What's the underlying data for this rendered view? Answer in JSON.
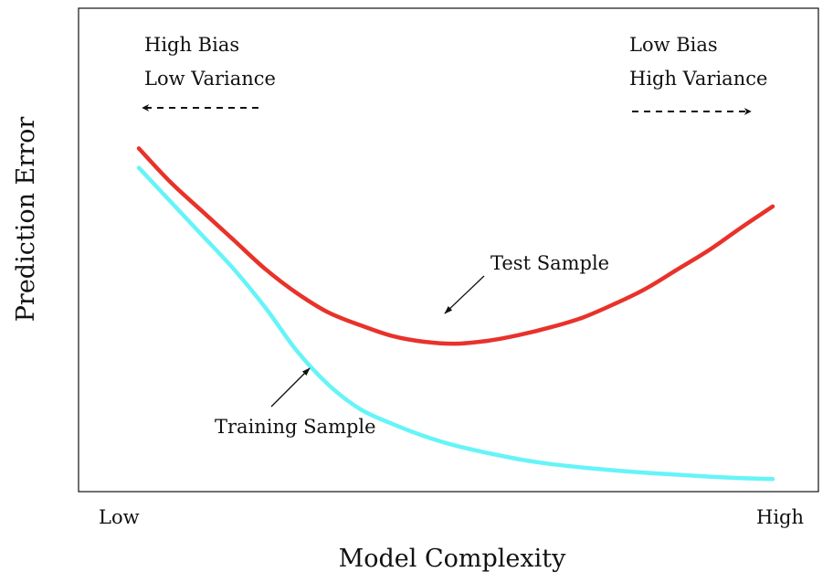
{
  "chart_data": {
    "type": "line",
    "title": "",
    "xlabel": "Model Complexity",
    "ylabel": "Prediction Error",
    "x_tick_labels": [
      "Low",
      "High"
    ],
    "xlim": [
      0,
      1
    ],
    "ylim": [
      0,
      1
    ],
    "grid": false,
    "series": [
      {
        "name": "Test Sample",
        "color": "#e8322a",
        "x": [
          0.0,
          0.05,
          0.1,
          0.15,
          0.2,
          0.25,
          0.3,
          0.35,
          0.4,
          0.45,
          0.5,
          0.55,
          0.6,
          0.65,
          0.7,
          0.75,
          0.8,
          0.85,
          0.9,
          0.95,
          1.0
        ],
        "y": [
          0.71,
          0.64,
          0.58,
          0.52,
          0.46,
          0.41,
          0.37,
          0.344,
          0.322,
          0.31,
          0.306,
          0.312,
          0.324,
          0.34,
          0.36,
          0.388,
          0.42,
          0.46,
          0.5,
          0.546,
          0.59
        ]
      },
      {
        "name": "Training Sample",
        "color": "#66f4f8",
        "x": [
          0.0,
          0.05,
          0.1,
          0.15,
          0.2,
          0.25,
          0.3,
          0.35,
          0.4,
          0.45,
          0.5,
          0.55,
          0.6,
          0.65,
          0.7,
          0.75,
          0.8,
          0.85,
          0.9,
          0.95,
          1.0
        ],
        "y": [
          0.67,
          0.6,
          0.53,
          0.46,
          0.38,
          0.29,
          0.22,
          0.17,
          0.14,
          0.115,
          0.095,
          0.08,
          0.067,
          0.057,
          0.05,
          0.044,
          0.039,
          0.035,
          0.031,
          0.028,
          0.026
        ]
      }
    ],
    "annotations": [
      {
        "lines": [
          "High Bias",
          "Low Variance"
        ],
        "arrow": "left"
      },
      {
        "lines": [
          "Low Bias",
          "High Variance"
        ],
        "arrow": "right"
      },
      {
        "text": "Test Sample"
      },
      {
        "text": "Training Sample"
      }
    ]
  }
}
